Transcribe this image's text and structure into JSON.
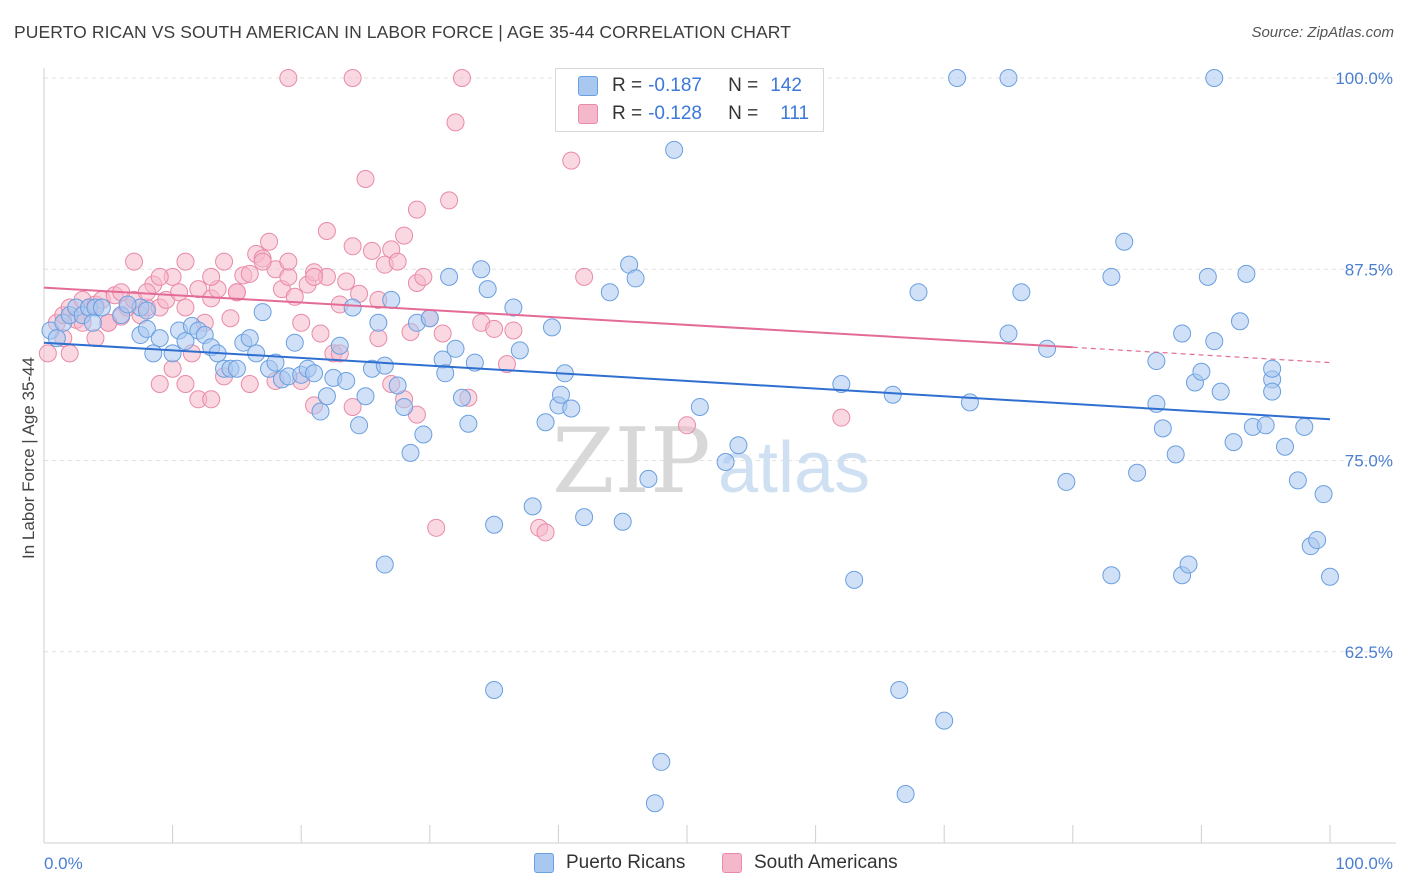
{
  "title": "PUERTO RICAN VS SOUTH AMERICAN IN LABOR FORCE | AGE 35-44 CORRELATION CHART",
  "source": "Source: ZipAtlas.com",
  "watermark": {
    "zip": "ZIP",
    "atlas": "atlas"
  },
  "legend": {
    "rows": [
      {
        "r_label": "R =",
        "r_value": "-0.187",
        "n_label": "N =",
        "n_value": "142",
        "color": "#a9c8f0",
        "stroke": "#6a9fe0"
      },
      {
        "r_label": "R =",
        "r_value": "-0.128",
        "n_label": "N =",
        "n_value": "111",
        "color": "#f5b8cb",
        "stroke": "#e98aa8"
      }
    ]
  },
  "bottom_legend": [
    {
      "label": "Puerto Ricans",
      "color": "#a9c8f0",
      "stroke": "#6a9fe0"
    },
    {
      "label": "South Americans",
      "color": "#f5b8cb",
      "stroke": "#e98aa8"
    }
  ],
  "chart_data": {
    "type": "scatter",
    "title": "PUERTO RICAN VS SOUTH AMERICAN IN LABOR FORCE | AGE 35-44 CORRELATION CHART",
    "xlabel": "",
    "ylabel": "In Labor Force | Age 35-44",
    "xlim": [
      0,
      100
    ],
    "ylim": [
      50,
      100
    ],
    "x_tick_labels": [
      "0.0%",
      "100.0%"
    ],
    "y_ticks": [
      62.5,
      75.0,
      87.5,
      100.0
    ],
    "y_tick_labels": [
      "62.5%",
      "75.0%",
      "87.5%",
      "100.0%"
    ],
    "grid": true,
    "series": [
      {
        "name": "Puerto Ricans",
        "color": "#6a9fe0",
        "fill": "#a9c8f0",
        "trend": {
          "x0": 0,
          "y0": 82.7,
          "x1": 100,
          "y1": 77.7
        },
        "points": [
          [
            0.5,
            83.5
          ],
          [
            1,
            83
          ],
          [
            1.5,
            84
          ],
          [
            2,
            84.5
          ],
          [
            2.5,
            85
          ],
          [
            3,
            84.5
          ],
          [
            3.5,
            85
          ],
          [
            4,
            85
          ],
          [
            4.5,
            85
          ],
          [
            3.8,
            84
          ],
          [
            6,
            84.5
          ],
          [
            7.5,
            85
          ],
          [
            8,
            84.8
          ],
          [
            6.5,
            85.2
          ],
          [
            7.5,
            83.2
          ],
          [
            8,
            83.6
          ],
          [
            8.5,
            82
          ],
          [
            9,
            83
          ],
          [
            10,
            82
          ],
          [
            10.5,
            83.5
          ],
          [
            11,
            82.8
          ],
          [
            11.5,
            83.8
          ],
          [
            12,
            83.5
          ],
          [
            12.5,
            83.2
          ],
          [
            13,
            82.4
          ],
          [
            13.5,
            82
          ],
          [
            14,
            81
          ],
          [
            14.5,
            81
          ],
          [
            15,
            81
          ],
          [
            15.5,
            82.7
          ],
          [
            16,
            83
          ],
          [
            16.5,
            82
          ],
          [
            17,
            84.7
          ],
          [
            17.5,
            81
          ],
          [
            18,
            81.4
          ],
          [
            18.5,
            80.3
          ],
          [
            19,
            80.5
          ],
          [
            19.5,
            82.7
          ],
          [
            20,
            80.6
          ],
          [
            20.5,
            81
          ],
          [
            21,
            80.7
          ],
          [
            21.5,
            78.2
          ],
          [
            22,
            79.2
          ],
          [
            22.5,
            80.4
          ],
          [
            23,
            82.5
          ],
          [
            23.5,
            80.2
          ],
          [
            24,
            85
          ],
          [
            24.5,
            77.3
          ],
          [
            25,
            79.2
          ],
          [
            25.5,
            81
          ],
          [
            26,
            84
          ],
          [
            26.5,
            81.2
          ],
          [
            26.5,
            68.2
          ],
          [
            27,
            85.5
          ],
          [
            27.5,
            79.9
          ],
          [
            28,
            78.5
          ],
          [
            28.5,
            75.5
          ],
          [
            29,
            84
          ],
          [
            29.5,
            76.7
          ],
          [
            30,
            84.3
          ],
          [
            31,
            81.6
          ],
          [
            31.2,
            80.7
          ],
          [
            31.5,
            87
          ],
          [
            32,
            82.3
          ],
          [
            32.5,
            79.1
          ],
          [
            33,
            77.4
          ],
          [
            33.5,
            81.4
          ],
          [
            34,
            87.5
          ],
          [
            34.5,
            86.2
          ],
          [
            35,
            70.8
          ],
          [
            35,
            60
          ],
          [
            36.5,
            85
          ],
          [
            37,
            82.2
          ],
          [
            38,
            72
          ],
          [
            39,
            77.5
          ],
          [
            39.5,
            83.7
          ],
          [
            40,
            78.6
          ],
          [
            40.5,
            80.7
          ],
          [
            40.2,
            79.3
          ],
          [
            41,
            78.4
          ],
          [
            42,
            71.3
          ],
          [
            44,
            86
          ],
          [
            45,
            71
          ],
          [
            45.5,
            87.8
          ],
          [
            46,
            86.9
          ],
          [
            47,
            73.8
          ],
          [
            47.5,
            52.6
          ],
          [
            48,
            55.3
          ],
          [
            49,
            95.3
          ],
          [
            51,
            78.5
          ],
          [
            53,
            74.9
          ],
          [
            54,
            76
          ],
          [
            59.5,
            100
          ],
          [
            62,
            80
          ],
          [
            63,
            67.2
          ],
          [
            66,
            79.3
          ],
          [
            66.5,
            60
          ],
          [
            68,
            86
          ],
          [
            70,
            58
          ],
          [
            71,
            100
          ],
          [
            72,
            78.8
          ],
          [
            75,
            83.3
          ],
          [
            75,
            100
          ],
          [
            76,
            86
          ],
          [
            78,
            82.3
          ],
          [
            79.5,
            73.6
          ],
          [
            83,
            87
          ],
          [
            83,
            67.5
          ],
          [
            84,
            89.3
          ],
          [
            85,
            74.2
          ],
          [
            86.5,
            78.7
          ],
          [
            86.5,
            81.5
          ],
          [
            87,
            77.1
          ],
          [
            88,
            75.4
          ],
          [
            88.5,
            83.3
          ],
          [
            88.5,
            67.5
          ],
          [
            89,
            68.2
          ],
          [
            89.5,
            80.1
          ],
          [
            90,
            80.8
          ],
          [
            90.5,
            87
          ],
          [
            91,
            100
          ],
          [
            91,
            82.8
          ],
          [
            91.5,
            79.5
          ],
          [
            92.5,
            76.2
          ],
          [
            93,
            84.1
          ],
          [
            93.5,
            87.2
          ],
          [
            94,
            77.2
          ],
          [
            95,
            77.3
          ],
          [
            95.5,
            80.3
          ],
          [
            95.5,
            81
          ],
          [
            95.5,
            79.5
          ],
          [
            96.5,
            75.9
          ],
          [
            97.5,
            73.7
          ],
          [
            98,
            77.2
          ],
          [
            98.5,
            69.4
          ],
          [
            99,
            69.8
          ],
          [
            99.5,
            72.8
          ],
          [
            100,
            67.4
          ],
          [
            67,
            53.2
          ]
        ]
      },
      {
        "name": "South Americans",
        "color": "#e98aa8",
        "fill": "#f5b8cb",
        "trend": {
          "x0": 0,
          "y0": 86.3,
          "x1": 80,
          "y1": 82.4,
          "dash_to": {
            "x": 100,
            "y": 81.4
          }
        },
        "points": [
          [
            0.3,
            82
          ],
          [
            1,
            84
          ],
          [
            1.5,
            84.5
          ],
          [
            2,
            85
          ],
          [
            2.5,
            84.2
          ],
          [
            3,
            85.5
          ],
          [
            3.5,
            85
          ],
          [
            4,
            85.2
          ],
          [
            4.5,
            85.5
          ],
          [
            5,
            84
          ],
          [
            5.5,
            85.8
          ],
          [
            6,
            84.4
          ],
          [
            6.5,
            85
          ],
          [
            7,
            85.5
          ],
          [
            7.5,
            84.5
          ],
          [
            8,
            85
          ],
          [
            8.5,
            86.5
          ],
          [
            9,
            85
          ],
          [
            9.5,
            85.5
          ],
          [
            10,
            87
          ],
          [
            10.5,
            86
          ],
          [
            11,
            85
          ],
          [
            11.5,
            82
          ],
          [
            12,
            86.2
          ],
          [
            12.5,
            84
          ],
          [
            13,
            85.6
          ],
          [
            13.5,
            86.2
          ],
          [
            14,
            88
          ],
          [
            14.5,
            84.3
          ],
          [
            15,
            86
          ],
          [
            15.5,
            87.1
          ],
          [
            16,
            87.2
          ],
          [
            16.5,
            88.5
          ],
          [
            17,
            88.2
          ],
          [
            17.5,
            89.3
          ],
          [
            18,
            87.5
          ],
          [
            18.5,
            86.2
          ],
          [
            19,
            87
          ],
          [
            19.5,
            85.7
          ],
          [
            20,
            84
          ],
          [
            20.5,
            86.5
          ],
          [
            21,
            87.3
          ],
          [
            21.5,
            83.3
          ],
          [
            22,
            87
          ],
          [
            22.5,
            82
          ],
          [
            23,
            85.2
          ],
          [
            23.5,
            86.7
          ],
          [
            24,
            89
          ],
          [
            24.5,
            85.9
          ],
          [
            25,
            93.4
          ],
          [
            25.5,
            88.7
          ],
          [
            26,
            85.5
          ],
          [
            26.5,
            87.8
          ],
          [
            27,
            88.8
          ],
          [
            27.5,
            88
          ],
          [
            28,
            89.7
          ],
          [
            28.5,
            83.4
          ],
          [
            29,
            86.6
          ],
          [
            29.5,
            87
          ],
          [
            30,
            84.3
          ],
          [
            30.5,
            70.6
          ],
          [
            31,
            83.3
          ],
          [
            32,
            97.1
          ],
          [
            33,
            79.1
          ],
          [
            34,
            84
          ],
          [
            35,
            83.6
          ],
          [
            36,
            81.3
          ],
          [
            36.5,
            83.5
          ],
          [
            38.5,
            70.6
          ],
          [
            39,
            70.3
          ],
          [
            41,
            94.6
          ],
          [
            42,
            87
          ],
          [
            50,
            77.3
          ],
          [
            62,
            77.8
          ],
          [
            14,
            80.5
          ],
          [
            12,
            79
          ],
          [
            18,
            80.2
          ],
          [
            19,
            100
          ],
          [
            24,
            100
          ],
          [
            32.5,
            100
          ],
          [
            29,
            91.4
          ],
          [
            31.5,
            92
          ],
          [
            22,
            90
          ],
          [
            23,
            82
          ],
          [
            26,
            83
          ],
          [
            27,
            80
          ],
          [
            28,
            79
          ],
          [
            29,
            78
          ],
          [
            24,
            78.5
          ],
          [
            21,
            78.6
          ],
          [
            20,
            80.2
          ],
          [
            16,
            80
          ],
          [
            13,
            79
          ],
          [
            9,
            80
          ],
          [
            15,
            86
          ],
          [
            10,
            81
          ],
          [
            11,
            80
          ],
          [
            8,
            86
          ],
          [
            6,
            86
          ],
          [
            5,
            84
          ],
          [
            4,
            83
          ],
          [
            3,
            84
          ],
          [
            2,
            82
          ],
          [
            1.5,
            83
          ],
          [
            7,
            88
          ],
          [
            9,
            87
          ],
          [
            11,
            88
          ],
          [
            13,
            87
          ],
          [
            17,
            88
          ],
          [
            19,
            88
          ],
          [
            21,
            87
          ]
        ]
      }
    ]
  }
}
